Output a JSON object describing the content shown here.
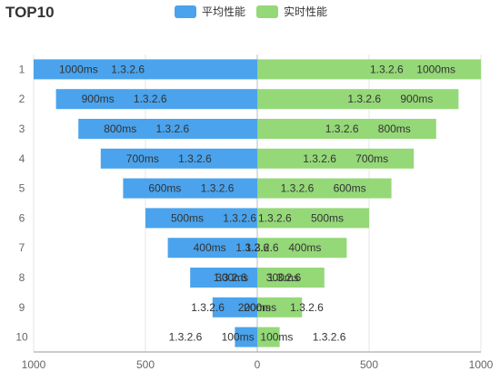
{
  "chart_data": {
    "type": "bar",
    "title": "TOP10",
    "orientation": "horizontal-diverging",
    "categories": [
      "1",
      "2",
      "3",
      "4",
      "5",
      "6",
      "7",
      "8",
      "9",
      "10"
    ],
    "series": [
      {
        "name": "平均性能",
        "color": "#4aa3ec",
        "side": "left",
        "values": [
          1000,
          900,
          800,
          700,
          600,
          500,
          400,
          300,
          200,
          100
        ]
      },
      {
        "name": "实时性能",
        "color": "#95d878",
        "side": "right",
        "values": [
          1000,
          900,
          800,
          700,
          600,
          500,
          400,
          300,
          200,
          100
        ]
      }
    ],
    "value_suffix": "ms",
    "bar_label": "1.3.2.6",
    "xlim": [
      1000,
      0,
      1000
    ],
    "x_ticks": [
      "1000",
      "500",
      "0",
      "500",
      "1000"
    ],
    "grid": true
  }
}
